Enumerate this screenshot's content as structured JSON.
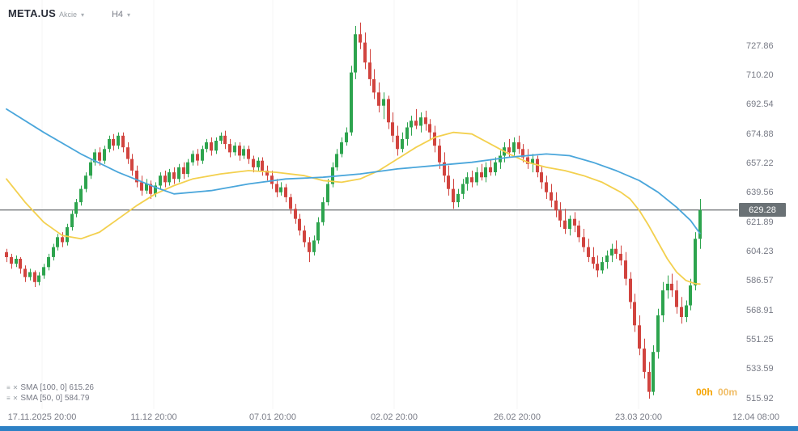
{
  "header": {
    "symbol": "META.US",
    "instrument_type": "Akcie",
    "timeframe": "H4"
  },
  "icons": {
    "caret_down": "▾",
    "menu": "≡",
    "close": "✕"
  },
  "legend": {
    "items": [
      {
        "label": "SMA [100, 0] 615.26"
      },
      {
        "label": "SMA [50, 0] 584.79"
      }
    ]
  },
  "countdown": {
    "hours": "00h",
    "minutes": "00m"
  },
  "price_badge": "629.28",
  "chart_data": {
    "type": "candlestick",
    "title": "META.US H4 candlestick chart with SMA(100) and SMA(50)",
    "y_ticks": [
      "727.86",
      "710.20",
      "692.54",
      "674.88",
      "657.22",
      "639.56",
      "621.89",
      "604.23",
      "586.57",
      "568.91",
      "551.25",
      "533.59",
      "515.92"
    ],
    "x_labels": [
      "17.11.2025 20:00",
      "11.12 20:00",
      "07.01 20:00",
      "02.02 20:00",
      "26.02 20:00",
      "23.03 20:00",
      "12.04 08:00"
    ],
    "current_price": 629.28,
    "colors": {
      "up": "#2da44e",
      "down": "#d1443f",
      "sma100": "#4aa6db",
      "sma50": "#f3d04e",
      "price_line": "#44494d",
      "badge_bg": "#6a7175",
      "bottom_bar": "#2d81c5",
      "countdown": "#f5a300",
      "countdown_light": "#f0bd66"
    },
    "candle_format": [
      "open",
      "high",
      "low",
      "close"
    ],
    "candles": [
      [
        604,
        606,
        598,
        601
      ],
      [
        601,
        603,
        594,
        597
      ],
      [
        597,
        602,
        595,
        600
      ],
      [
        600,
        601,
        591,
        594
      ],
      [
        594,
        596,
        586,
        589
      ],
      [
        589,
        594,
        587,
        592
      ],
      [
        592,
        593,
        583,
        586
      ],
      [
        586,
        592,
        584,
        590
      ],
      [
        590,
        597,
        588,
        595
      ],
      [
        595,
        603,
        593,
        601
      ],
      [
        601,
        609,
        599,
        607
      ],
      [
        607,
        615,
        605,
        613
      ],
      [
        613,
        616,
        607,
        610
      ],
      [
        610,
        621,
        608,
        619
      ],
      [
        619,
        629,
        617,
        627
      ],
      [
        627,
        636,
        625,
        634
      ],
      [
        634,
        644,
        632,
        642
      ],
      [
        642,
        652,
        640,
        650
      ],
      [
        650,
        660,
        648,
        658
      ],
      [
        658,
        666,
        656,
        664
      ],
      [
        664,
        667,
        656,
        659
      ],
      [
        659,
        668,
        657,
        666
      ],
      [
        666,
        674,
        664,
        672
      ],
      [
        672,
        675,
        665,
        668
      ],
      [
        668,
        676,
        666,
        674
      ],
      [
        674,
        676,
        664,
        667
      ],
      [
        667,
        670,
        657,
        660
      ],
      [
        660,
        663,
        650,
        653
      ],
      [
        653,
        656,
        643,
        646
      ],
      [
        646,
        650,
        638,
        641
      ],
      [
        641,
        648,
        639,
        645
      ],
      [
        645,
        647,
        636,
        639
      ],
      [
        639,
        646,
        637,
        644
      ],
      [
        644,
        652,
        642,
        650
      ],
      [
        650,
        653,
        643,
        646
      ],
      [
        646,
        654,
        644,
        652
      ],
      [
        652,
        655,
        645,
        648
      ],
      [
        648,
        657,
        646,
        655
      ],
      [
        655,
        658,
        648,
        651
      ],
      [
        651,
        660,
        649,
        658
      ],
      [
        658,
        665,
        656,
        663
      ],
      [
        663,
        666,
        656,
        659
      ],
      [
        659,
        668,
        657,
        666
      ],
      [
        666,
        672,
        664,
        670
      ],
      [
        670,
        673,
        662,
        665
      ],
      [
        665,
        673,
        663,
        671
      ],
      [
        671,
        676,
        669,
        674
      ],
      [
        674,
        677,
        666,
        669
      ],
      [
        669,
        672,
        661,
        664
      ],
      [
        664,
        670,
        662,
        668
      ],
      [
        668,
        670,
        659,
        662
      ],
      [
        662,
        668,
        660,
        666
      ],
      [
        666,
        668,
        657,
        660
      ],
      [
        660,
        662,
        652,
        655
      ],
      [
        655,
        661,
        653,
        659
      ],
      [
        659,
        661,
        650,
        653
      ],
      [
        653,
        656,
        647,
        650
      ],
      [
        650,
        653,
        642,
        645
      ],
      [
        645,
        648,
        637,
        640
      ],
      [
        640,
        646,
        638,
        643
      ],
      [
        643,
        645,
        634,
        637
      ],
      [
        637,
        639,
        627,
        630
      ],
      [
        630,
        633,
        621,
        624
      ],
      [
        624,
        627,
        614,
        617
      ],
      [
        617,
        620,
        607,
        610
      ],
      [
        610,
        613,
        598,
        604
      ],
      [
        604,
        614,
        602,
        611
      ],
      [
        611,
        625,
        609,
        622
      ],
      [
        622,
        637,
        620,
        634
      ],
      [
        634,
        648,
        632,
        645
      ],
      [
        645,
        658,
        643,
        655
      ],
      [
        655,
        666,
        653,
        663
      ],
      [
        663,
        673,
        661,
        670
      ],
      [
        670,
        679,
        668,
        676
      ],
      [
        676,
        716,
        674,
        712
      ],
      [
        712,
        740,
        708,
        735
      ],
      [
        735,
        742,
        726,
        730
      ],
      [
        730,
        736,
        714,
        718
      ],
      [
        718,
        726,
        704,
        708
      ],
      [
        708,
        714,
        696,
        700
      ],
      [
        700,
        706,
        688,
        692
      ],
      [
        692,
        700,
        684,
        696
      ],
      [
        696,
        698,
        678,
        682
      ],
      [
        682,
        688,
        670,
        674
      ],
      [
        674,
        680,
        662,
        666
      ],
      [
        666,
        676,
        664,
        672
      ],
      [
        672,
        682,
        668,
        679
      ],
      [
        679,
        686,
        674,
        683
      ],
      [
        683,
        690,
        678,
        680
      ],
      [
        680,
        688,
        676,
        685
      ],
      [
        685,
        689,
        677,
        681
      ],
      [
        681,
        684,
        672,
        676
      ],
      [
        676,
        680,
        664,
        668
      ],
      [
        668,
        672,
        654,
        658
      ],
      [
        658,
        664,
        646,
        650
      ],
      [
        650,
        656,
        638,
        642
      ],
      [
        642,
        648,
        630,
        634
      ],
      [
        634,
        642,
        631,
        639
      ],
      [
        639,
        648,
        636,
        645
      ],
      [
        645,
        652,
        641,
        649
      ],
      [
        649,
        653,
        643,
        646
      ],
      [
        646,
        655,
        644,
        652
      ],
      [
        652,
        657,
        647,
        649
      ],
      [
        649,
        658,
        646,
        655
      ],
      [
        655,
        660,
        650,
        652
      ],
      [
        652,
        661,
        650,
        658
      ],
      [
        658,
        665,
        654,
        662
      ],
      [
        662,
        670,
        658,
        667
      ],
      [
        667,
        672,
        661,
        664
      ],
      [
        664,
        673,
        662,
        670
      ],
      [
        670,
        674,
        663,
        666
      ],
      [
        666,
        669,
        658,
        661
      ],
      [
        661,
        666,
        654,
        657
      ],
      [
        657,
        663,
        652,
        660
      ],
      [
        660,
        662,
        649,
        652
      ],
      [
        652,
        656,
        642,
        646
      ],
      [
        646,
        650,
        636,
        640
      ],
      [
        640,
        645,
        631,
        635
      ],
      [
        635,
        640,
        625,
        629
      ],
      [
        629,
        634,
        619,
        623
      ],
      [
        623,
        630,
        615,
        618
      ],
      [
        618,
        626,
        614,
        624
      ],
      [
        624,
        628,
        616,
        620
      ],
      [
        620,
        623,
        610,
        613
      ],
      [
        613,
        618,
        604,
        607
      ],
      [
        607,
        612,
        598,
        601
      ],
      [
        601,
        607,
        594,
        597
      ],
      [
        597,
        602,
        589,
        593
      ],
      [
        593,
        601,
        591,
        598
      ],
      [
        598,
        605,
        594,
        602
      ],
      [
        602,
        609,
        598,
        606
      ],
      [
        606,
        611,
        600,
        603
      ],
      [
        603,
        608,
        596,
        599
      ],
      [
        599,
        604,
        584,
        588
      ],
      [
        588,
        592,
        570,
        574
      ],
      [
        574,
        579,
        556,
        560
      ],
      [
        560,
        566,
        542,
        546
      ],
      [
        546,
        552,
        528,
        532
      ],
      [
        532,
        538,
        515.9,
        520
      ],
      [
        520,
        548,
        518,
        544
      ],
      [
        544,
        570,
        540,
        566
      ],
      [
        566,
        586,
        562,
        581
      ],
      [
        581,
        590,
        576,
        585
      ],
      [
        585,
        591,
        577,
        581
      ],
      [
        581,
        587,
        567,
        571
      ],
      [
        571,
        577,
        561,
        565
      ],
      [
        565,
        575,
        562,
        572
      ],
      [
        572,
        588,
        569,
        584
      ],
      [
        584,
        616,
        581,
        612
      ],
      [
        612,
        636,
        606,
        629.3
      ]
    ],
    "sma100": {
      "name": "SMA [100, 0]",
      "value": 615.26,
      "points": [
        [
          0,
          690
        ],
        [
          8,
          676
        ],
        [
          16,
          663
        ],
        [
          24,
          652
        ],
        [
          32,
          643
        ],
        [
          36,
          639
        ],
        [
          44,
          641
        ],
        [
          52,
          645
        ],
        [
          60,
          648
        ],
        [
          68,
          649
        ],
        [
          76,
          651
        ],
        [
          84,
          654
        ],
        [
          92,
          656
        ],
        [
          100,
          658
        ],
        [
          108,
          661
        ],
        [
          116,
          663
        ],
        [
          121,
          662
        ],
        [
          126,
          658
        ],
        [
          131,
          653
        ],
        [
          136,
          647
        ],
        [
          140,
          640
        ],
        [
          144,
          631
        ],
        [
          147,
          623
        ],
        [
          149,
          615.3
        ]
      ]
    },
    "sma50": {
      "name": "SMA [50, 0]",
      "value": 584.79,
      "points": [
        [
          0,
          648
        ],
        [
          4,
          634
        ],
        [
          8,
          622
        ],
        [
          12,
          614
        ],
        [
          16,
          612
        ],
        [
          20,
          616
        ],
        [
          24,
          624
        ],
        [
          28,
          632
        ],
        [
          32,
          639
        ],
        [
          36,
          644
        ],
        [
          40,
          648
        ],
        [
          46,
          651
        ],
        [
          52,
          653
        ],
        [
          58,
          652
        ],
        [
          64,
          650
        ],
        [
          68,
          647
        ],
        [
          72,
          646
        ],
        [
          76,
          648
        ],
        [
          80,
          653
        ],
        [
          84,
          660
        ],
        [
          88,
          667
        ],
        [
          92,
          673
        ],
        [
          96,
          676
        ],
        [
          100,
          675
        ],
        [
          104,
          669
        ],
        [
          108,
          663
        ],
        [
          112,
          658
        ],
        [
          116,
          655
        ],
        [
          120,
          653
        ],
        [
          124,
          650
        ],
        [
          128,
          646
        ],
        [
          132,
          640
        ],
        [
          134,
          636
        ],
        [
          136,
          629
        ],
        [
          138,
          620
        ],
        [
          140,
          610
        ],
        [
          142,
          600
        ],
        [
          144,
          592
        ],
        [
          146,
          587
        ],
        [
          148,
          585
        ],
        [
          149,
          584.8
        ]
      ]
    }
  }
}
